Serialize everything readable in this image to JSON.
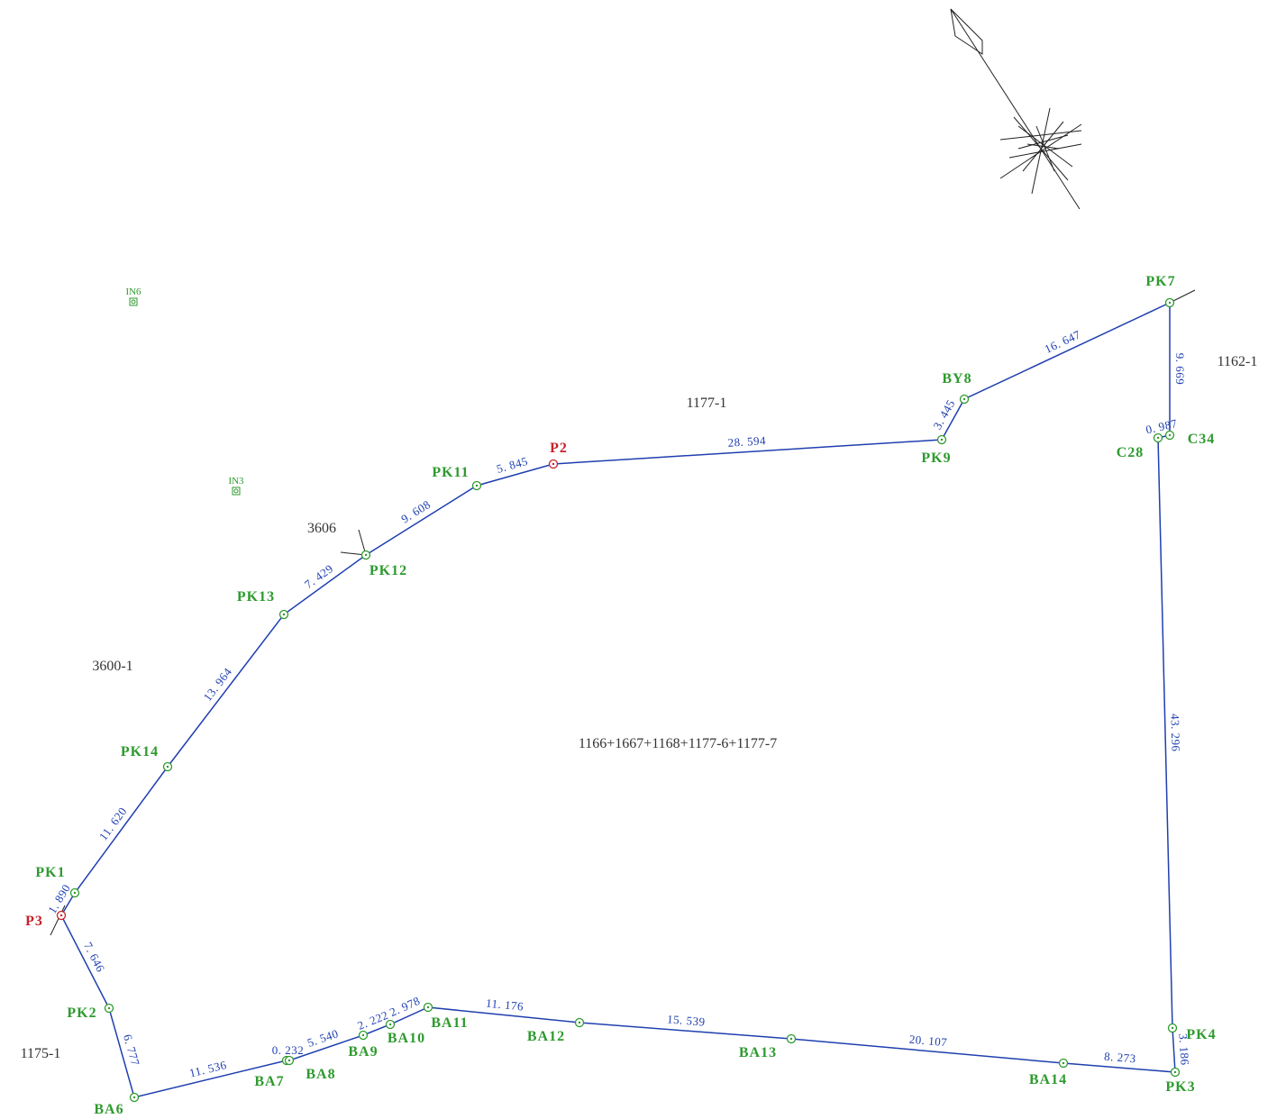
{
  "points": [
    {
      "label": "PK1"
    },
    {
      "label": "P3"
    },
    {
      "label": "PK2"
    },
    {
      "label": "BA6"
    },
    {
      "label": "BA7"
    },
    {
      "label": "BA8"
    },
    {
      "label": "BA9"
    },
    {
      "label": "BA10"
    },
    {
      "label": "BA11"
    },
    {
      "label": "BA12"
    },
    {
      "label": "BA13"
    },
    {
      "label": "BA14"
    },
    {
      "label": "PK3"
    },
    {
      "label": "PK4"
    },
    {
      "label": "C28"
    },
    {
      "label": "C34"
    },
    {
      "label": "PK7"
    },
    {
      "label": "BY8"
    },
    {
      "label": "PK9"
    },
    {
      "label": "P2"
    },
    {
      "label": "PK11"
    },
    {
      "label": "PK12"
    },
    {
      "label": "PK13"
    },
    {
      "label": "PK14"
    }
  ],
  "edges": [
    {
      "label": "1. 890"
    },
    {
      "label": "7. 646"
    },
    {
      "label": "6. 777"
    },
    {
      "label": "11. 536"
    },
    {
      "label": "0. 232"
    },
    {
      "label": "5. 540"
    },
    {
      "label": "2. 222"
    },
    {
      "label": "2. 978"
    },
    {
      "label": "11. 176"
    },
    {
      "label": "15. 539"
    },
    {
      "label": "20. 107"
    },
    {
      "label": "8. 273"
    },
    {
      "label": "3. 186"
    },
    {
      "label": "43. 296"
    },
    {
      "label": "0. 987"
    },
    {
      "label": "9. 669"
    },
    {
      "label": "16. 647"
    },
    {
      "label": "3. 445"
    },
    {
      "label": "28. 594"
    },
    {
      "label": "5. 845"
    },
    {
      "label": "9. 608"
    },
    {
      "label": "7. 429"
    },
    {
      "label": "13. 964"
    },
    {
      "label": "11. 620"
    }
  ],
  "parcels": [
    {
      "label": "1177-1"
    },
    {
      "label": "1162-1"
    },
    {
      "label": "3606"
    },
    {
      "label": "3600-1"
    },
    {
      "label": "1175-1"
    },
    {
      "label": "1166+1667+1168+1177-6+1177-7"
    }
  ],
  "markers": [
    {
      "label": "IN6"
    },
    {
      "label": "IN3"
    }
  ]
}
